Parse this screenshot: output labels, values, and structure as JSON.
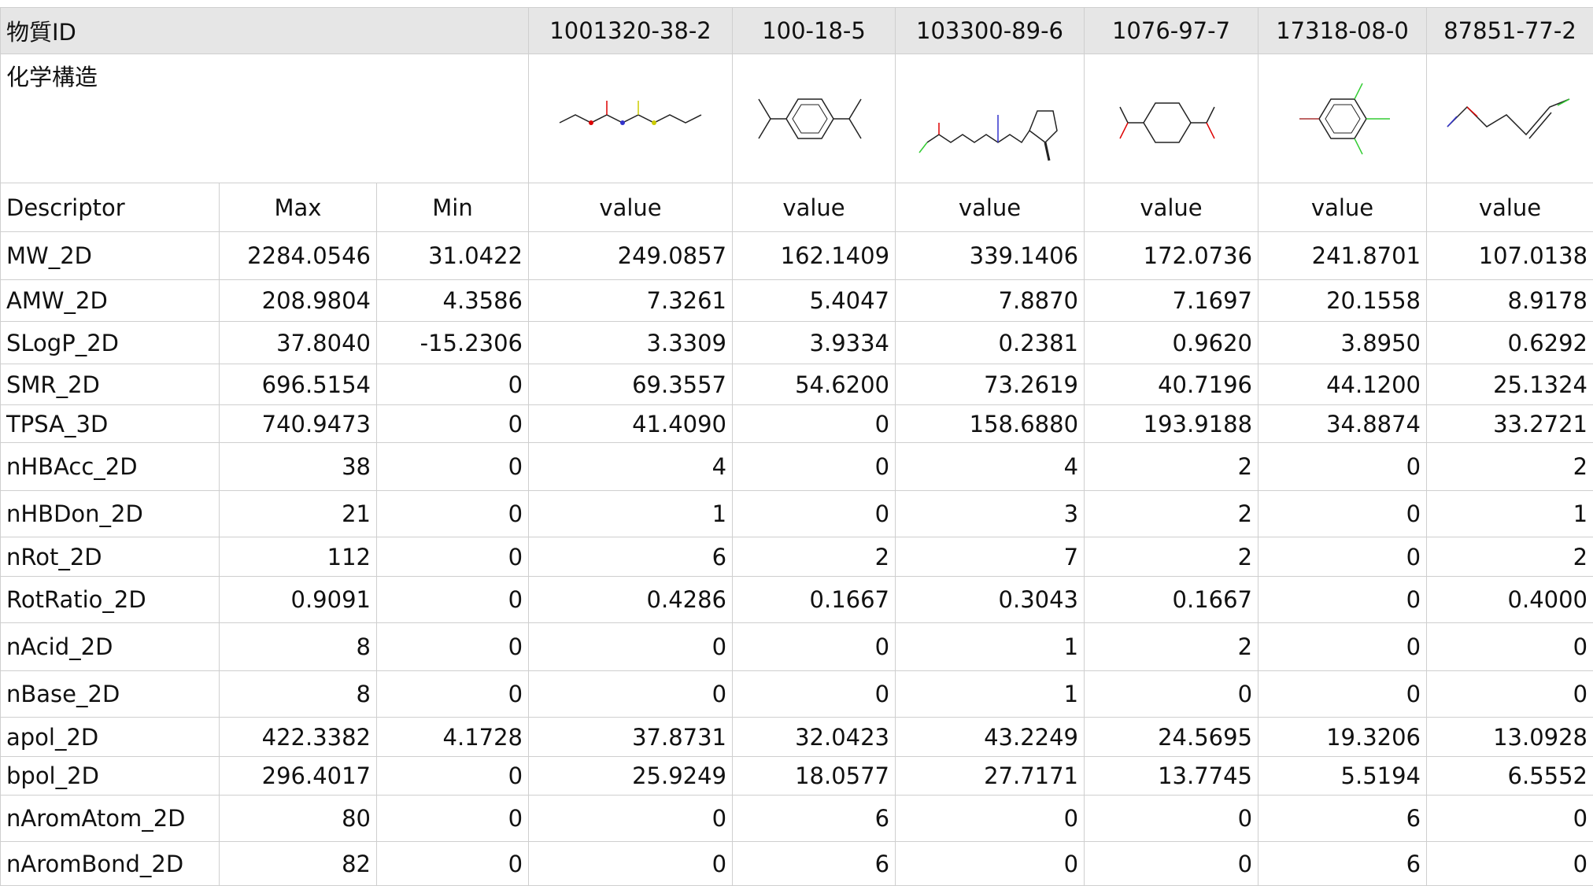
{
  "header": {
    "id_label": "物質ID",
    "compounds": [
      "1001320-38-2",
      "100-18-5",
      "103300-89-6",
      "1076-97-7",
      "17318-08-0",
      "87851-77-2"
    ]
  },
  "structure_label": "化学構造",
  "subheader": [
    "Descriptor",
    "Max",
    "Min",
    "value",
    "value",
    "value",
    "value",
    "value",
    "value"
  ],
  "rows": [
    [
      "MW_2D",
      "2284.0546",
      "31.0422",
      "249.0857",
      "162.1409",
      "339.1406",
      "172.0736",
      "241.8701",
      "107.0138"
    ],
    [
      "AMW_2D",
      "208.9804",
      "4.3586",
      "7.3261",
      "5.4047",
      "7.8870",
      "7.1697",
      "20.1558",
      "8.9178"
    ],
    [
      "SLogP_2D",
      "37.8040",
      "-15.2306",
      "3.3309",
      "3.9334",
      "0.2381",
      "0.9620",
      "3.8950",
      "0.6292"
    ],
    [
      "SMR_2D",
      "696.5154",
      "0",
      "69.3557",
      "54.6200",
      "73.2619",
      "40.7196",
      "44.1200",
      "25.1324"
    ],
    [
      "TPSA_3D",
      "740.9473",
      "0",
      "41.4090",
      "0",
      "158.6880",
      "193.9188",
      "34.8874",
      "33.2721"
    ],
    [
      "nHBAcc_2D",
      "38",
      "0",
      "4",
      "0",
      "4",
      "2",
      "0",
      "2"
    ],
    [
      "nHBDon_2D",
      "21",
      "0",
      "1",
      "0",
      "3",
      "2",
      "0",
      "1"
    ],
    [
      "nRot_2D",
      "112",
      "0",
      "6",
      "2",
      "7",
      "2",
      "0",
      "2"
    ],
    [
      "RotRatio_2D",
      "0.9091",
      "0",
      "0.4286",
      "0.1667",
      "0.3043",
      "0.1667",
      "0",
      "0.4000"
    ],
    [
      "nAcid_2D",
      "8",
      "0",
      "0",
      "0",
      "1",
      "2",
      "0",
      "0"
    ],
    [
      "nBase_2D",
      "8",
      "0",
      "0",
      "0",
      "1",
      "0",
      "0",
      "0"
    ],
    [
      "apol_2D",
      "422.3382",
      "4.1728",
      "37.8731",
      "32.0423",
      "43.2249",
      "24.5695",
      "19.3206",
      "13.0928"
    ],
    [
      "bpol_2D",
      "296.4017",
      "0",
      "25.9249",
      "18.0577",
      "27.7171",
      "13.7745",
      "5.5194",
      "6.5552"
    ],
    [
      "nAromAtom_2D",
      "80",
      "0",
      "0",
      "6",
      "0",
      "0",
      "6",
      "0"
    ],
    [
      "nAromBond_2D",
      "82",
      "0",
      "0",
      "6",
      "0",
      "0",
      "6",
      "0"
    ]
  ]
}
